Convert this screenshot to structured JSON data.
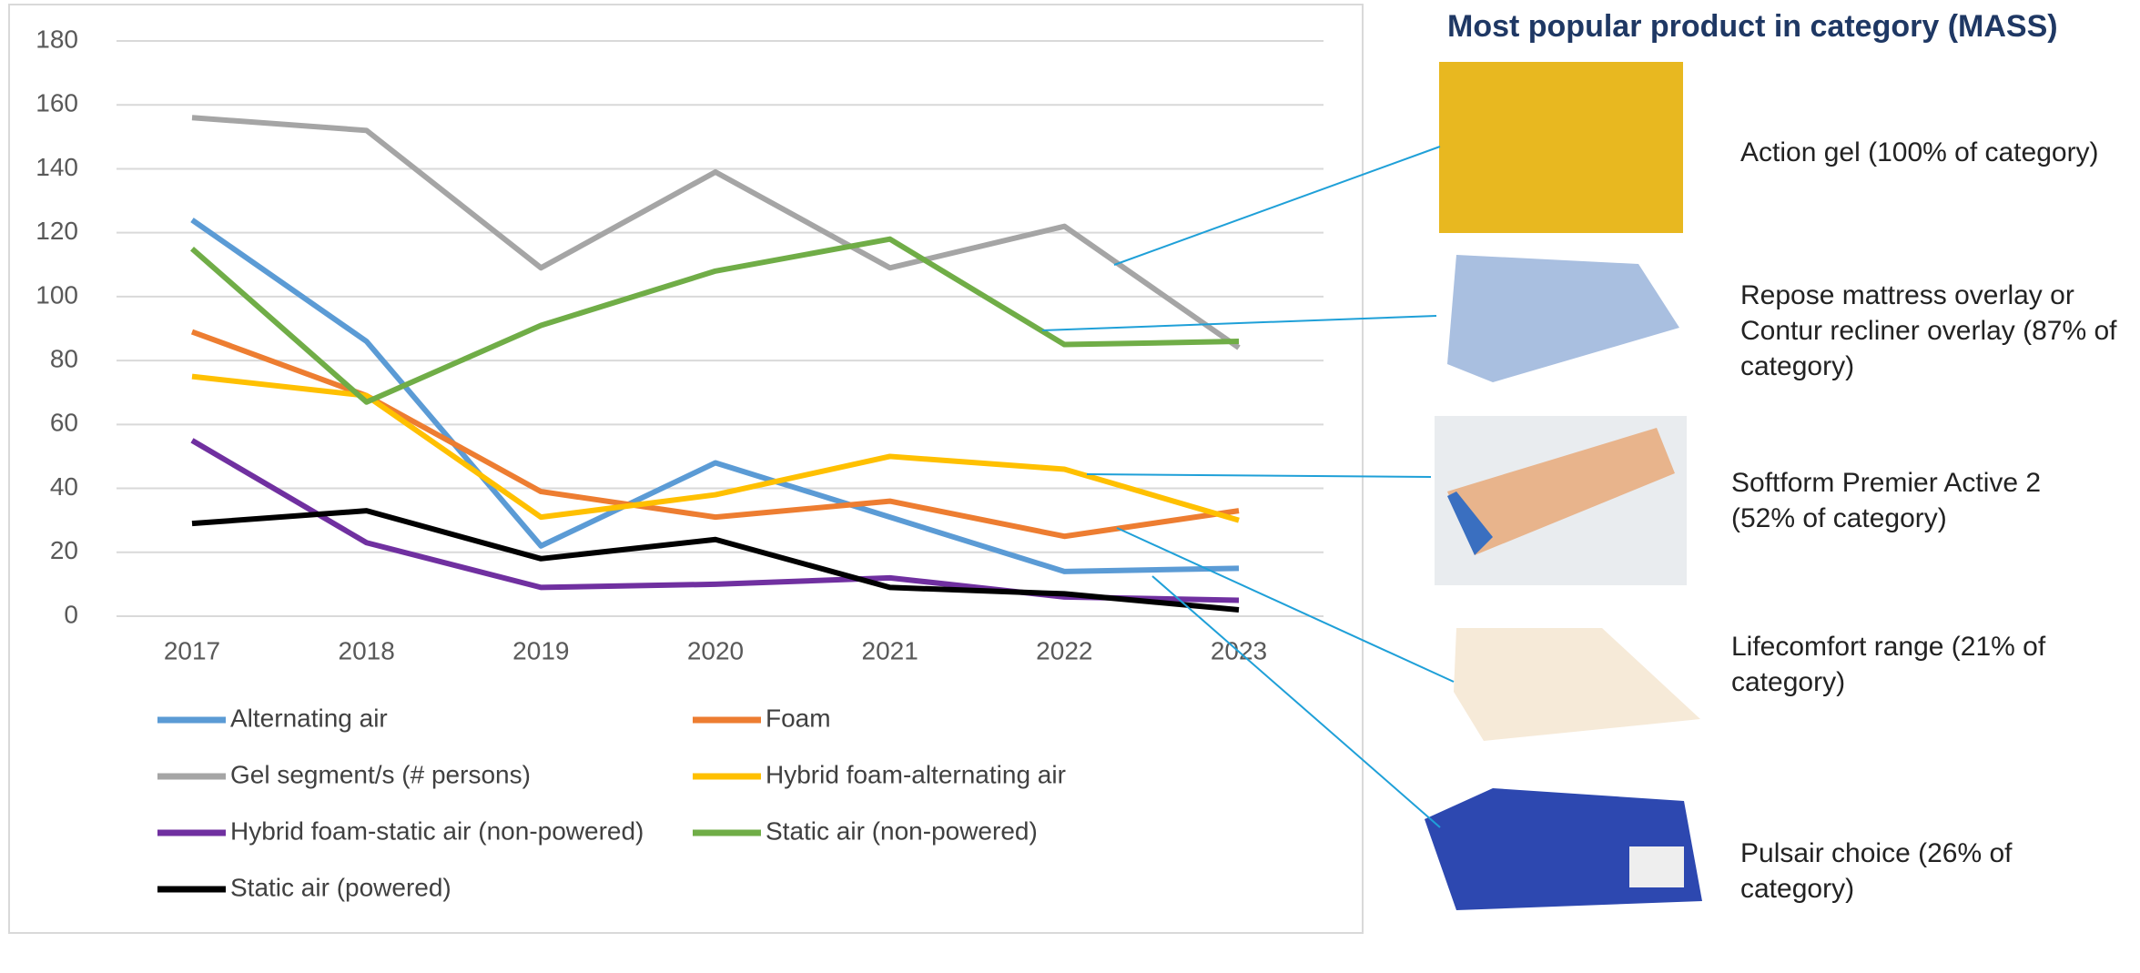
{
  "chart_data": {
    "type": "line",
    "categories": [
      "2017",
      "2018",
      "2019",
      "2020",
      "2021",
      "2022",
      "2023"
    ],
    "ylim": [
      0,
      180
    ],
    "yticks": [
      0,
      20,
      40,
      60,
      80,
      100,
      120,
      140,
      160,
      180
    ],
    "grid": true,
    "series": [
      {
        "name": "Alternating air",
        "color": "#5b9bd5",
        "values": [
          124,
          86,
          22,
          48,
          31,
          14,
          15
        ]
      },
      {
        "name": "Foam",
        "color": "#ed7d31",
        "values": [
          89,
          69,
          39,
          31,
          36,
          25,
          33
        ]
      },
      {
        "name": "Gel segment/s (# persons)",
        "color": "#a5a5a5",
        "values": [
          156,
          152,
          109,
          139,
          109,
          122,
          84
        ]
      },
      {
        "name": "Hybrid foam-alternating air",
        "color": "#ffc000",
        "values": [
          75,
          69,
          31,
          38,
          50,
          46,
          30
        ]
      },
      {
        "name": "Hybrid foam-static air (non-powered)",
        "color": "#7030a0",
        "values": [
          55,
          23,
          9,
          10,
          12,
          6,
          5
        ]
      },
      {
        "name": "Static air (non-powered)",
        "color": "#70ad47",
        "values": [
          115,
          67,
          91,
          108,
          118,
          85,
          86
        ]
      },
      {
        "name": "Static air (powered)",
        "color": "#000000",
        "values": [
          29,
          33,
          18,
          24,
          9,
          7,
          2
        ]
      }
    ]
  },
  "panel": {
    "title": "Most popular product in category (MASS)",
    "products": [
      "Action gel (100% of category)",
      "Repose mattress overlay or Contur recliner overlay (87% of category)",
      "Softform Premier Active 2 (52% of category)",
      "Lifecomfort range (21% of category)",
      "Pulsair choice (26% of category)"
    ]
  }
}
